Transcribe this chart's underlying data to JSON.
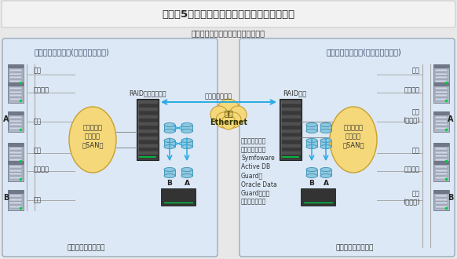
{
  "title": "レベル5：広域の故障・災害に対して業務継続",
  "subtitle": "セカンダリサイトのシステムも現用",
  "primary_label": "プライマリサイト(データセンター)",
  "secondary_label": "セカンダリサイト(データセンター)",
  "primary_backup": "バックアップサーバ",
  "secondary_backup": "バックアップサーバ",
  "raid_primary": "RAID装置間ミラー",
  "raid_secondary": "RAID装置",
  "remote_mirror": "リモートミラー",
  "cloud_text": "広域\nEthernet",
  "san_text": "ストレージ\n統合環境\n（SAN）",
  "note_text": "ストレージ装置\nの機能に加え、\nSymfoware\nActive DB\nGuard、\nOracle Data\nGuard等によ\nり、業務を継続",
  "standby": "待機",
  "cluster": "クラスタ",
  "current": "現用",
  "current_ref_a": "現用\n(参照系)",
  "current_ref_b": "現用\n(参照系)",
  "label_a": "A",
  "label_b": "B",
  "bg_color": "#eef3f8",
  "box_bg": "#dce8f5",
  "title_bg": "#f2f2f2",
  "outer_bg": "#e8e8e8",
  "cloud_color": "#f5d87a",
  "cloud_edge": "#c8a030",
  "san_color": "#f5d87a",
  "san_edge": "#c8a030",
  "arrow_color": "#29abe2",
  "server_body": "#b0b8c8",
  "server_dark": "#707888",
  "server_light": "#d0d8e8",
  "raid_body": "#404040",
  "raid_stripe1": "#505050",
  "raid_stripe2": "#383838",
  "disk_color": "#90c8e0",
  "disk_edge": "#4499bb",
  "line_color": "#888888",
  "box_edge": "#99aabb",
  "title_edge": "#cccccc"
}
